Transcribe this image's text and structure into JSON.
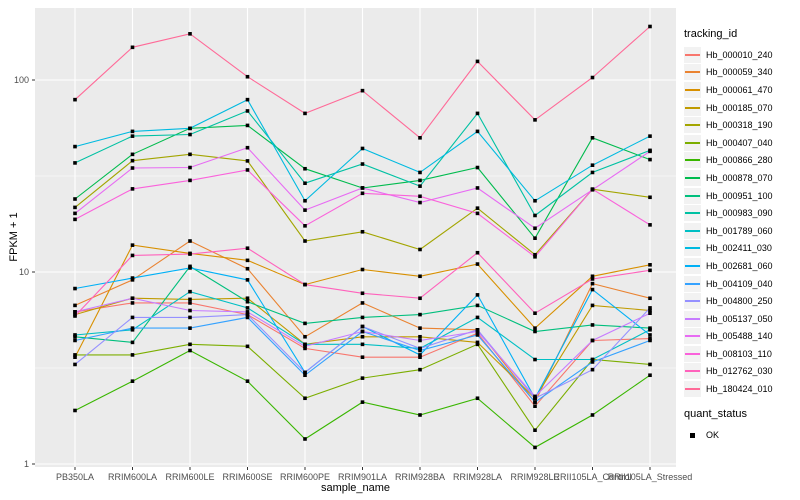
{
  "figure": {
    "background": "#ffffff",
    "panel_background": "#EBEBEB",
    "gridline_color": "#ffffff",
    "tick_label_color": "#4D4D4D",
    "x_axis_title": "sample_name",
    "y_axis_title": "FPKM + 1"
  },
  "legend": {
    "tracking_title": "tracking_id",
    "quant_title": "quant_status",
    "quant_items": [
      {
        "label": "OK",
        "swatch": "black-square"
      }
    ]
  },
  "chart_data": {
    "type": "line",
    "title": "",
    "xlabel": "sample_name",
    "ylabel": "FPKM + 1",
    "y_scale": "log10",
    "y_ticks": [
      1,
      10,
      100
    ],
    "ylim": [
      0.97,
      237
    ],
    "grid": true,
    "legend_position": "right",
    "point_marker": "black-square",
    "categories": [
      "PB350LA",
      "RRIM600LA",
      "RRIM600LE",
      "RRIM600SE",
      "RRIM600PE",
      "RRIM901LA",
      "RRIM928BA",
      "RRIM928LA",
      "RRIM928LE",
      "RRII105LA_Control",
      "RRII105LA_Stressed"
    ],
    "series": [
      {
        "name": "Hb_000010_240",
        "color": "#F8766D",
        "values": [
          6.2,
          6.9,
          6.9,
          6.0,
          4.0,
          3.6,
          3.6,
          4.8,
          2.0,
          4.4,
          4.5
        ]
      },
      {
        "name": "Hb_000059_340",
        "color": "#EA8331",
        "values": [
          6.7,
          9.1,
          14.5,
          10.4,
          4.6,
          6.9,
          5.1,
          5.0,
          2.1,
          8.7,
          7.3
        ]
      },
      {
        "name": "Hb_000061_470",
        "color": "#D89000",
        "values": [
          3.6,
          13.8,
          12.5,
          11.5,
          8.6,
          10.3,
          9.5,
          11.0,
          5.1,
          9.5,
          10.9
        ]
      },
      {
        "name": "Hb_000185_070",
        "color": "#C09B00",
        "values": [
          6.0,
          7.3,
          7.2,
          7.3,
          4.2,
          4.6,
          4.6,
          4.3,
          2.2,
          6.7,
          6.3
        ]
      },
      {
        "name": "Hb_000318_190",
        "color": "#A3A500",
        "values": [
          21.7,
          38.0,
          41.0,
          37.9,
          14.5,
          16.2,
          13.1,
          21.5,
          12.3,
          27.0,
          24.5
        ]
      },
      {
        "name": "Hb_000407_040",
        "color": "#7CAE00",
        "values": [
          3.7,
          3.7,
          4.2,
          4.1,
          2.2,
          2.8,
          3.1,
          4.2,
          1.5,
          3.5,
          3.3
        ]
      },
      {
        "name": "Hb_000866_280",
        "color": "#39B600",
        "values": [
          1.9,
          2.7,
          3.9,
          2.7,
          1.35,
          2.1,
          1.8,
          2.2,
          1.22,
          1.8,
          2.9
        ]
      },
      {
        "name": "Hb_000878_070",
        "color": "#00BB4E",
        "values": [
          24.0,
          41.0,
          56.0,
          58.0,
          34.5,
          27.4,
          30.0,
          35.0,
          15.0,
          50.0,
          38.5
        ]
      },
      {
        "name": "Hb_000951_100",
        "color": "#00BF7D",
        "values": [
          4.6,
          4.3,
          10.7,
          7.0,
          5.4,
          5.8,
          6.0,
          6.7,
          4.9,
          5.3,
          5.1
        ]
      },
      {
        "name": "Hb_000983_090",
        "color": "#00C1A3",
        "values": [
          37.0,
          51.0,
          52.0,
          69.0,
          29.0,
          36.5,
          28.0,
          67.0,
          19.7,
          33.0,
          43.0
        ]
      },
      {
        "name": "Hb_001789_060",
        "color": "#00BFC4",
        "values": [
          4.7,
          5.0,
          7.9,
          6.5,
          4.2,
          4.2,
          4.0,
          5.8,
          3.5,
          3.5,
          5.0
        ]
      },
      {
        "name": "Hb_002411_030",
        "color": "#00BAE0",
        "values": [
          45.0,
          54.0,
          56.0,
          79.0,
          23.5,
          44.0,
          33.0,
          54.0,
          23.5,
          36.0,
          51.0
        ]
      },
      {
        "name": "Hb_002681_060",
        "color": "#00B0F6",
        "values": [
          8.2,
          9.3,
          10.5,
          9.1,
          3.0,
          5.2,
          3.7,
          7.6,
          2.2,
          8.1,
          4.7
        ]
      },
      {
        "name": "Hb_004109_040",
        "color": "#35A2FF",
        "values": [
          4.4,
          5.1,
          5.1,
          5.8,
          2.9,
          4.9,
          3.9,
          4.7,
          2.1,
          3.4,
          4.4
        ]
      },
      {
        "name": "Hb_004800_250",
        "color": "#9590FF",
        "values": [
          3.3,
          5.8,
          5.8,
          6.0,
          3.0,
          5.2,
          4.0,
          5.0,
          2.2,
          3.1,
          6.5
        ]
      },
      {
        "name": "Hb_005137_050",
        "color": "#C77CFF",
        "values": [
          6.2,
          7.3,
          6.3,
          6.2,
          4.1,
          4.9,
          4.4,
          4.9,
          2.25,
          4.4,
          6.1
        ]
      },
      {
        "name": "Hb_005488_140",
        "color": "#E76BF3",
        "values": [
          20.2,
          34.8,
          35.0,
          44.4,
          21.0,
          27.4,
          23.0,
          27.4,
          16.9,
          26.8,
          42.5
        ]
      },
      {
        "name": "Hb_008103_110",
        "color": "#FA62DB",
        "values": [
          18.8,
          27.1,
          30.0,
          34.0,
          17.4,
          25.7,
          24.8,
          20.2,
          12.0,
          27.0,
          17.6
        ]
      },
      {
        "name": "Hb_012762_030",
        "color": "#FF62BC",
        "values": [
          5.9,
          12.2,
          12.4,
          13.3,
          8.6,
          7.75,
          7.3,
          12.6,
          6.1,
          9.2,
          10.2
        ]
      },
      {
        "name": "Hb_180424_010",
        "color": "#FF6A98",
        "values": [
          79.0,
          148.0,
          174.0,
          104.0,
          67.0,
          88.0,
          50.0,
          125.0,
          62.0,
          103.0,
          190.0
        ]
      }
    ]
  }
}
